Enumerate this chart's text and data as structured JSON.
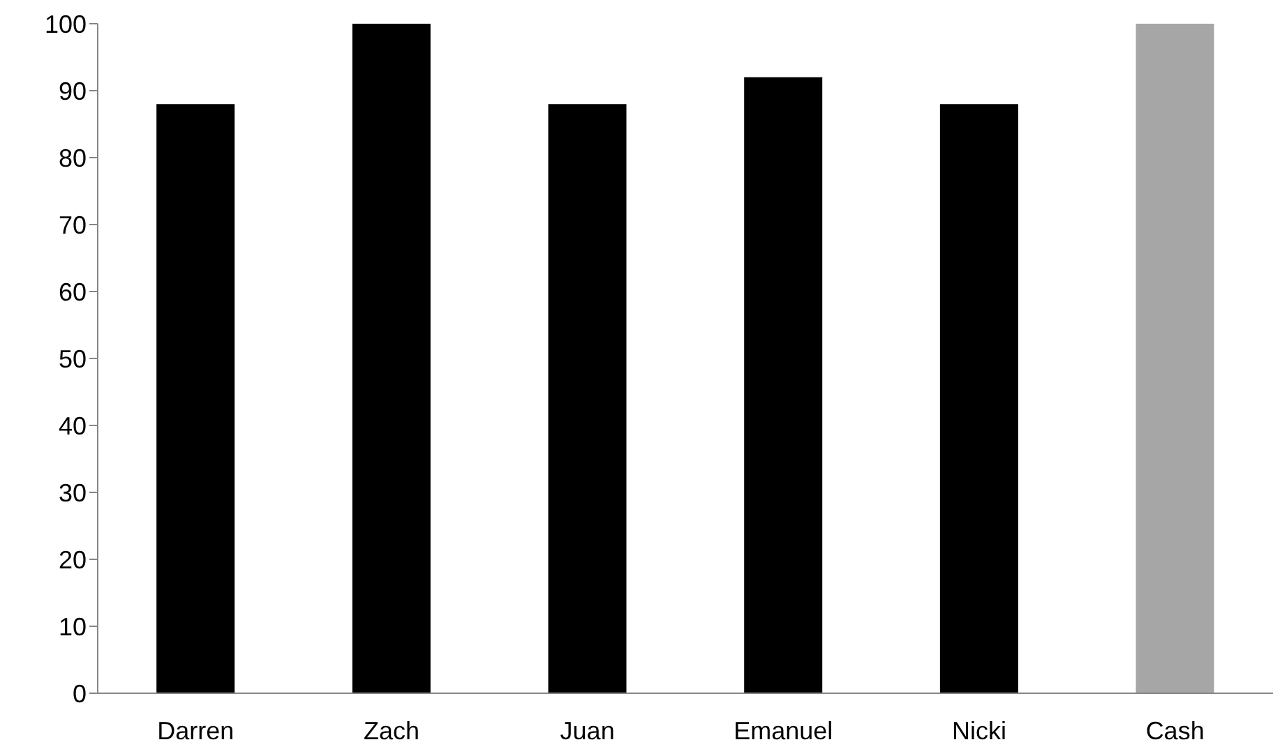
{
  "chart_data": {
    "type": "bar",
    "categories": [
      "Darren",
      "Zach",
      "Juan",
      "Emanuel",
      "Nicki",
      "Cash"
    ],
    "values": [
      88,
      100,
      88,
      92,
      88,
      100
    ],
    "colors": [
      "#000000",
      "#000000",
      "#000000",
      "#000000",
      "#000000",
      "#a6a6a6"
    ],
    "ylim": [
      0,
      100
    ],
    "yticks": [
      0,
      10,
      20,
      30,
      40,
      50,
      60,
      70,
      80,
      90,
      100
    ],
    "grid": false,
    "legend": false
  }
}
